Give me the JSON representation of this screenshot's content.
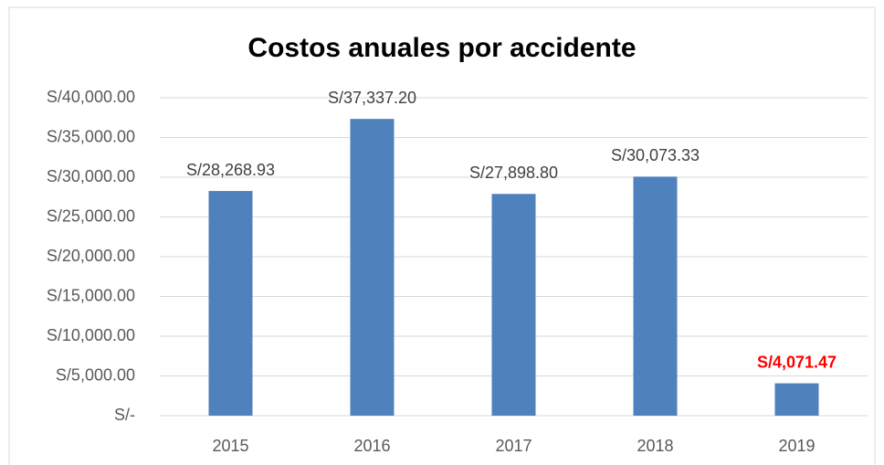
{
  "chart_data": {
    "type": "bar",
    "title": "Costos anuales por accidente",
    "categories": [
      "2015",
      "2016",
      "2017",
      "2018",
      "2019"
    ],
    "values": [
      28268.93,
      37337.2,
      27898.8,
      30073.33,
      4071.47
    ],
    "value_labels": [
      "S/28,268.93",
      "S/37,337.20",
      "S/27,898.80",
      "S/30,073.33",
      "S/4,071.47"
    ],
    "value_label_colors": [
      "#404040",
      "#404040",
      "#404040",
      "#404040",
      "#ff0000"
    ],
    "color": "#4f81bd",
    "ylim": [
      0,
      40000
    ],
    "yticks": [
      {
        "value": 0,
        "label": "S/-"
      },
      {
        "value": 5000,
        "label": "S/5,000.00"
      },
      {
        "value": 10000,
        "label": "S/10,000.00"
      },
      {
        "value": 15000,
        "label": "S/15,000.00"
      },
      {
        "value": 20000,
        "label": "S/20,000.00"
      },
      {
        "value": 25000,
        "label": "S/25,000.00"
      },
      {
        "value": 30000,
        "label": "S/30,000.00"
      },
      {
        "value": 35000,
        "label": "S/35,000.00"
      },
      {
        "value": 40000,
        "label": "S/40,000.00"
      }
    ],
    "grid": true
  }
}
